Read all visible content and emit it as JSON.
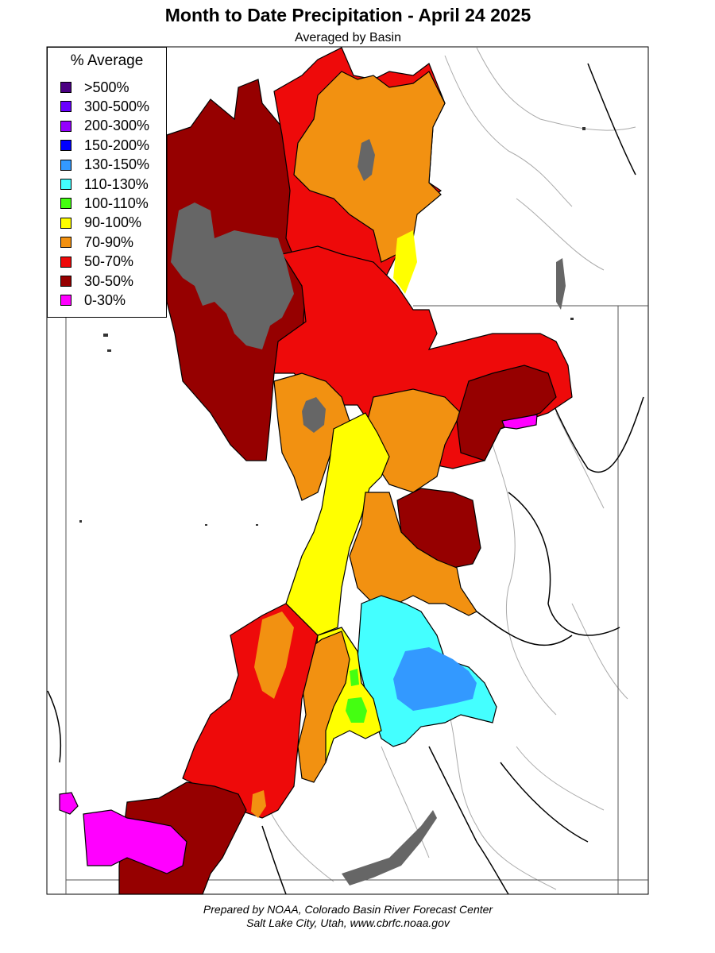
{
  "title": "Month to Date Precipitation - April 24 2025",
  "subtitle": "Averaged by Basin",
  "legend": {
    "title": "% Average",
    "items": [
      {
        "label": ">500%",
        "color": "#4b0082"
      },
      {
        "label": "300-500%",
        "color": "#6a00ff"
      },
      {
        "label": "200-300%",
        "color": "#9400ff"
      },
      {
        "label": "150-200%",
        "color": "#0000ff"
      },
      {
        "label": "130-150%",
        "color": "#3399ff"
      },
      {
        "label": "110-130%",
        "color": "#44ffff"
      },
      {
        "label": "100-110%",
        "color": "#44ff11"
      },
      {
        "label": "90-100%",
        "color": "#ffff00"
      },
      {
        "label": "70-90%",
        "color": "#f29111"
      },
      {
        "label": "50-70%",
        "color": "#ee0a0a"
      },
      {
        "label": "30-50%",
        "color": "#960000"
      },
      {
        "label": "0-30%",
        "color": "#ff00ff"
      }
    ]
  },
  "water_color": "#666666",
  "footer": {
    "line1": "Prepared by NOAA, Colorado Basin River Forecast Center",
    "line2": "Salt Lake City, Utah, www.cbrfc.noaa.gov"
  }
}
